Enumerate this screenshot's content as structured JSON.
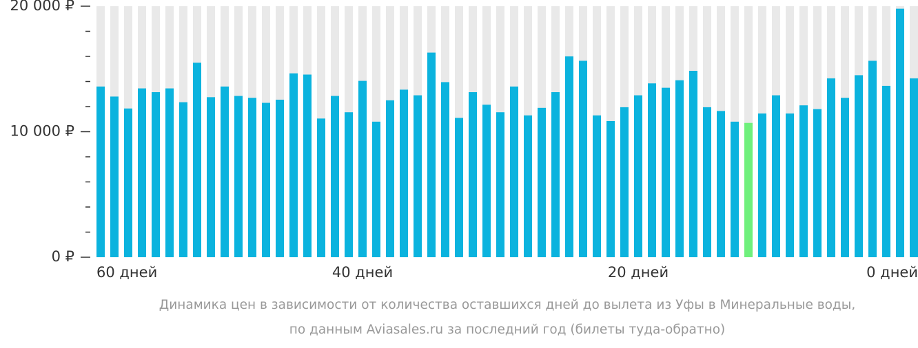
{
  "chart_data": {
    "type": "bar",
    "caption": [
      "Динамика цен в зависимости от количества оставшихся дней до вылета из Уфы в Минеральные воды,",
      "по данным Aviasales.ru за последний год (билеты туда-обратно)"
    ],
    "categories": [
      "60 дней",
      null,
      null,
      null,
      null,
      null,
      null,
      null,
      null,
      null,
      null,
      null,
      null,
      null,
      null,
      null,
      null,
      null,
      null,
      "40 дней",
      null,
      null,
      null,
      null,
      null,
      null,
      null,
      null,
      null,
      null,
      null,
      null,
      null,
      null,
      null,
      null,
      null,
      null,
      null,
      "20 дней",
      null,
      null,
      null,
      null,
      null,
      null,
      null,
      null,
      null,
      null,
      null,
      null,
      null,
      null,
      null,
      null,
      null,
      null,
      null,
      "0 дней"
    ],
    "values": [
      13600,
      12800,
      11850,
      13450,
      13150,
      13450,
      12350,
      15500,
      12750,
      13600,
      12850,
      12700,
      12300,
      12550,
      14650,
      14550,
      11050,
      12850,
      11550,
      14050,
      10800,
      12500,
      13350,
      12900,
      16300,
      13950,
      11100,
      13150,
      12150,
      11550,
      13600,
      11300,
      11900,
      13150,
      16000,
      15650,
      11300,
      10850,
      11950,
      12900,
      13850,
      13500,
      14100,
      14850,
      11950,
      11650,
      10800,
      10700,
      11450,
      12900,
      11450,
      12100,
      11800,
      14250,
      12700,
      14500,
      15650,
      13650,
      19800,
      14250
    ],
    "color": "#0bb3de",
    "highlight_index": 47,
    "highlight_color": "#6ff07c",
    "track_color": "#e9e9e9",
    "ylim": [
      0,
      20000
    ],
    "yticks": [
      {
        "value": 0,
        "label": "0 ₽"
      },
      {
        "value": 10000,
        "label": "10 000 ₽"
      },
      {
        "value": 20000,
        "label": "20 000 ₽"
      }
    ],
    "minor_yticks": [
      2000,
      4000,
      6000,
      8000,
      12000,
      14000,
      16000,
      18000
    ]
  }
}
